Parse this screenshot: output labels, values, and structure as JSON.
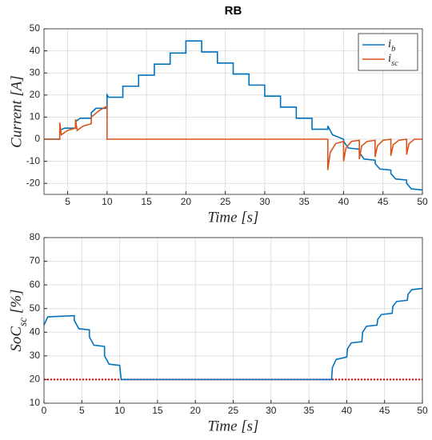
{
  "chart_data": [
    {
      "type": "line",
      "title": "RB",
      "xlabel": "Time [s]",
      "ylabel": "Current [A]",
      "xlim": [
        2,
        50
      ],
      "xticks": [
        5,
        10,
        15,
        20,
        25,
        30,
        35,
        40,
        45,
        50
      ],
      "ylim": [
        -25,
        50
      ],
      "yticks": [
        -20,
        -10,
        0,
        10,
        20,
        30,
        40,
        50
      ],
      "grid": true,
      "legend": "upper right",
      "series": [
        {
          "name": "i_b",
          "color": "#0072bd",
          "x": [
            2,
            4,
            4,
            4.6,
            6,
            6,
            6.6,
            8,
            8,
            8.6,
            10,
            10,
            10.2,
            12,
            12,
            14,
            14,
            16,
            16,
            18,
            18,
            20,
            20,
            22,
            22,
            24,
            24,
            26,
            26,
            28,
            28,
            30,
            30,
            32,
            32,
            34,
            34,
            36,
            36,
            38,
            38,
            38.6,
            40,
            40,
            40.6,
            42,
            42,
            42.6,
            44,
            44,
            44.6,
            46,
            46,
            46.6,
            48,
            48,
            48.6,
            50
          ],
          "values": [
            0,
            0,
            4,
            5,
            5,
            8,
            9.5,
            9.5,
            12,
            14,
            14,
            20,
            19,
            19,
            24,
            24,
            29,
            29,
            34,
            34,
            39,
            39,
            44.5,
            44.5,
            39.5,
            39.5,
            34.5,
            34.5,
            29.5,
            29.5,
            24.5,
            24.5,
            19.5,
            19.5,
            14.5,
            14.5,
            9.5,
            9.5,
            4.5,
            4.5,
            6,
            2,
            0,
            -1,
            -4,
            -4.5,
            -6,
            -9,
            -9.5,
            -11,
            -13.5,
            -14,
            -15.5,
            -18,
            -18.5,
            -20,
            -22.5,
            -23
          ]
        },
        {
          "name": "i_sc",
          "color": "#d95319",
          "x": [
            2,
            4,
            4,
            4.2,
            5,
            6,
            6,
            6.2,
            7,
            8,
            8,
            9,
            10,
            10,
            38,
            38,
            38.3,
            39,
            40,
            40,
            40.3,
            41,
            42,
            42,
            42.3,
            43,
            44,
            44,
            44.3,
            45,
            46,
            46,
            46.3,
            47,
            48,
            48,
            48.3,
            49,
            50
          ],
          "values": [
            0,
            0,
            7.5,
            2,
            4,
            5,
            9,
            4,
            6,
            7,
            10,
            13,
            15,
            0,
            0,
            -14,
            -6,
            -2,
            -1,
            -10,
            -4,
            -1,
            -0.5,
            -9,
            -3,
            -1,
            -0.5,
            -8,
            -3,
            -0.5,
            0,
            -7.5,
            -2.5,
            -0.5,
            0,
            -7,
            -2,
            0,
            0
          ]
        }
      ]
    },
    {
      "type": "line",
      "xlabel": "Time [s]",
      "ylabel": "SoC_sc [%]",
      "xlim": [
        0,
        50
      ],
      "xticks": [
        0,
        5,
        10,
        15,
        20,
        25,
        30,
        35,
        40,
        45,
        50
      ],
      "ylim": [
        10,
        80
      ],
      "yticks": [
        10,
        20,
        30,
        40,
        50,
        60,
        70,
        80
      ],
      "grid": true,
      "hlines": [
        {
          "value": 20,
          "color": "#e60000",
          "style": "dotted"
        }
      ],
      "series": [
        {
          "color": "#0072bd",
          "x": [
            0,
            0.5,
            4,
            4,
            4.6,
            6,
            6,
            6.6,
            8,
            8,
            8.6,
            10,
            10.2,
            38,
            38.1,
            38.6,
            40,
            40.1,
            40.6,
            42,
            42.1,
            42.6,
            44,
            44.1,
            44.6,
            46,
            46.1,
            46.6,
            48,
            48.1,
            48.6,
            50
          ],
          "values": [
            43,
            46.5,
            47,
            45,
            41.5,
            41,
            38,
            34.5,
            34,
            30,
            26.5,
            26,
            20,
            20,
            25,
            28.5,
            29.5,
            33,
            35.5,
            36,
            40,
            42.5,
            43,
            45.5,
            47.5,
            48,
            51,
            53,
            53.5,
            56,
            58,
            58.5
          ]
        }
      ]
    }
  ]
}
